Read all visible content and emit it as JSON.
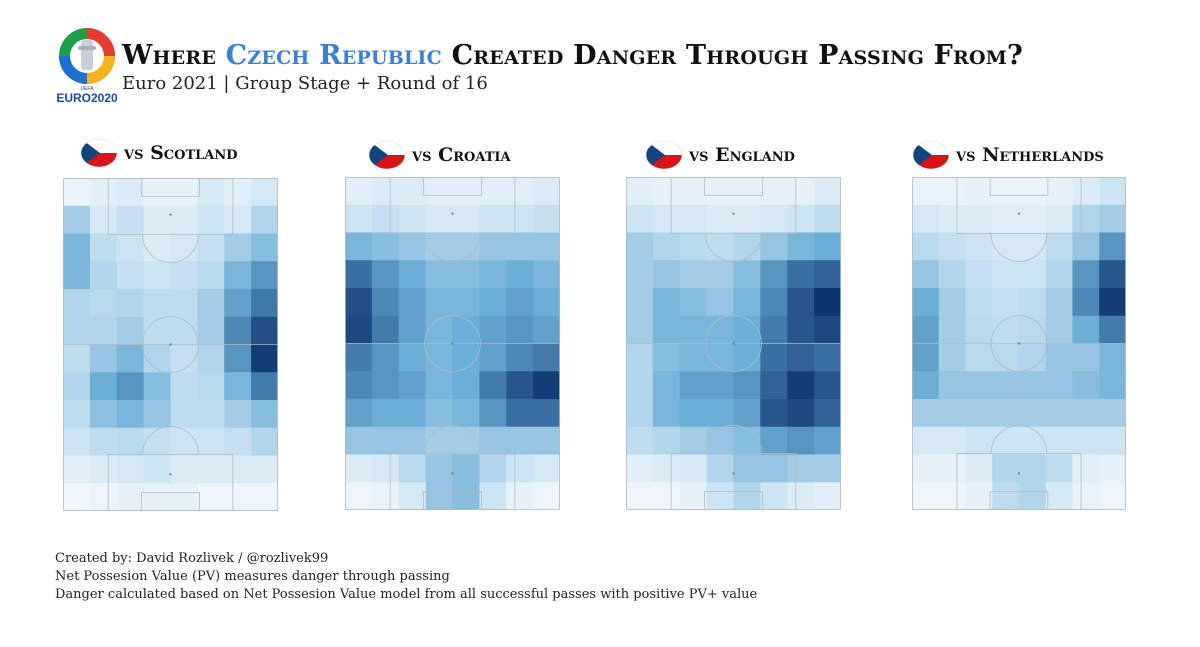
{
  "header": {
    "logo_text": "EURO2020",
    "logo_small_text": "UEFA",
    "title_prefix": "Where",
    "title_highlight": "Czech Republic",
    "title_suffix": "Created Danger Through Passing From?",
    "subtitle": "Euro 2021 | Group Stage + Round of 16"
  },
  "colors": {
    "highlight": "#3b7fd4",
    "heat_low": "#f7fbff",
    "heat_high": "#08306b"
  },
  "chart_data": [
    {
      "type": "heatmap",
      "title": "vs Scotland",
      "values": [
        [
          0.05,
          0.08,
          0.1,
          0.06,
          0.06,
          0.12,
          0.08,
          0.12
        ],
        [
          0.3,
          0.12,
          0.18,
          0.1,
          0.1,
          0.15,
          0.12,
          0.25
        ],
        [
          0.45,
          0.2,
          0.15,
          0.1,
          0.12,
          0.18,
          0.3,
          0.4
        ],
        [
          0.45,
          0.25,
          0.18,
          0.15,
          0.18,
          0.22,
          0.45,
          0.6
        ],
        [
          0.25,
          0.22,
          0.25,
          0.2,
          0.2,
          0.3,
          0.55,
          0.72
        ],
        [
          0.25,
          0.25,
          0.3,
          0.2,
          0.2,
          0.3,
          0.65,
          0.88
        ],
        [
          0.2,
          0.35,
          0.45,
          0.25,
          0.18,
          0.25,
          0.6,
          0.95
        ],
        [
          0.25,
          0.5,
          0.6,
          0.4,
          0.2,
          0.22,
          0.45,
          0.7
        ],
        [
          0.2,
          0.38,
          0.45,
          0.35,
          0.2,
          0.2,
          0.3,
          0.4
        ],
        [
          0.15,
          0.2,
          0.22,
          0.18,
          0.15,
          0.15,
          0.18,
          0.25
        ],
        [
          0.08,
          0.1,
          0.12,
          0.15,
          0.1,
          0.1,
          0.1,
          0.1
        ],
        [
          0.03,
          0.04,
          0.06,
          0.06,
          0.06,
          0.04,
          0.04,
          0.04
        ]
      ]
    },
    {
      "type": "heatmap",
      "title": "vs Croatia",
      "values": [
        [
          0.08,
          0.1,
          0.1,
          0.08,
          0.08,
          0.08,
          0.08,
          0.1
        ],
        [
          0.15,
          0.18,
          0.15,
          0.12,
          0.12,
          0.15,
          0.15,
          0.18
        ],
        [
          0.45,
          0.4,
          0.35,
          0.3,
          0.3,
          0.35,
          0.35,
          0.35
        ],
        [
          0.75,
          0.6,
          0.5,
          0.4,
          0.4,
          0.45,
          0.5,
          0.45
        ],
        [
          0.88,
          0.65,
          0.55,
          0.45,
          0.45,
          0.5,
          0.55,
          0.5
        ],
        [
          0.9,
          0.7,
          0.55,
          0.45,
          0.5,
          0.55,
          0.6,
          0.55
        ],
        [
          0.7,
          0.6,
          0.5,
          0.45,
          0.5,
          0.55,
          0.65,
          0.7
        ],
        [
          0.65,
          0.6,
          0.55,
          0.45,
          0.5,
          0.7,
          0.85,
          0.95
        ],
        [
          0.55,
          0.5,
          0.5,
          0.4,
          0.45,
          0.6,
          0.75,
          0.75
        ],
        [
          0.35,
          0.35,
          0.35,
          0.3,
          0.3,
          0.35,
          0.35,
          0.35
        ],
        [
          0.1,
          0.12,
          0.22,
          0.35,
          0.4,
          0.25,
          0.15,
          0.12
        ],
        [
          0.04,
          0.05,
          0.12,
          0.35,
          0.4,
          0.15,
          0.06,
          0.04
        ]
      ]
    },
    {
      "type": "heatmap",
      "title": "vs England",
      "values": [
        [
          0.08,
          0.06,
          0.06,
          0.06,
          0.06,
          0.06,
          0.06,
          0.1
        ],
        [
          0.15,
          0.12,
          0.12,
          0.1,
          0.1,
          0.12,
          0.15,
          0.2
        ],
        [
          0.3,
          0.25,
          0.22,
          0.2,
          0.25,
          0.35,
          0.45,
          0.5
        ],
        [
          0.3,
          0.35,
          0.3,
          0.3,
          0.4,
          0.6,
          0.75,
          0.8
        ],
        [
          0.3,
          0.45,
          0.4,
          0.35,
          0.45,
          0.65,
          0.85,
          0.98
        ],
        [
          0.3,
          0.45,
          0.45,
          0.45,
          0.5,
          0.7,
          0.85,
          0.9
        ],
        [
          0.25,
          0.4,
          0.45,
          0.45,
          0.5,
          0.75,
          0.8,
          0.75
        ],
        [
          0.25,
          0.45,
          0.55,
          0.55,
          0.6,
          0.8,
          0.95,
          0.85
        ],
        [
          0.25,
          0.45,
          0.5,
          0.5,
          0.55,
          0.85,
          0.9,
          0.8
        ],
        [
          0.2,
          0.25,
          0.3,
          0.35,
          0.4,
          0.55,
          0.6,
          0.55
        ],
        [
          0.08,
          0.1,
          0.12,
          0.25,
          0.35,
          0.35,
          0.3,
          0.3
        ],
        [
          0.04,
          0.04,
          0.06,
          0.15,
          0.25,
          0.15,
          0.1,
          0.08
        ]
      ]
    },
    {
      "type": "heatmap",
      "title": "vs Netherlands",
      "values": [
        [
          0.05,
          0.05,
          0.06,
          0.05,
          0.05,
          0.06,
          0.1,
          0.15
        ],
        [
          0.12,
          0.1,
          0.1,
          0.08,
          0.08,
          0.1,
          0.25,
          0.3
        ],
        [
          0.22,
          0.18,
          0.15,
          0.12,
          0.12,
          0.2,
          0.35,
          0.6
        ],
        [
          0.35,
          0.25,
          0.18,
          0.15,
          0.15,
          0.25,
          0.6,
          0.85
        ],
        [
          0.5,
          0.3,
          0.2,
          0.18,
          0.2,
          0.3,
          0.65,
          0.95
        ],
        [
          0.55,
          0.3,
          0.22,
          0.2,
          0.22,
          0.3,
          0.5,
          0.7
        ],
        [
          0.55,
          0.3,
          0.22,
          0.22,
          0.25,
          0.35,
          0.35,
          0.45
        ],
        [
          0.5,
          0.35,
          0.35,
          0.35,
          0.35,
          0.35,
          0.4,
          0.45
        ],
        [
          0.3,
          0.3,
          0.3,
          0.3,
          0.3,
          0.3,
          0.3,
          0.3
        ],
        [
          0.12,
          0.12,
          0.15,
          0.15,
          0.15,
          0.15,
          0.15,
          0.15
        ],
        [
          0.06,
          0.06,
          0.1,
          0.25,
          0.25,
          0.2,
          0.08,
          0.06
        ],
        [
          0.03,
          0.03,
          0.06,
          0.2,
          0.25,
          0.12,
          0.05,
          0.04
        ]
      ]
    }
  ],
  "footer": {
    "line1": "Created by: David Rozlivek / @rozlivek99",
    "line2": "Net Possesion Value (PV) measures danger through passing",
    "line3": "Danger calculated based on Net Possesion Value model from all successful passes  with positive PV+ value"
  }
}
